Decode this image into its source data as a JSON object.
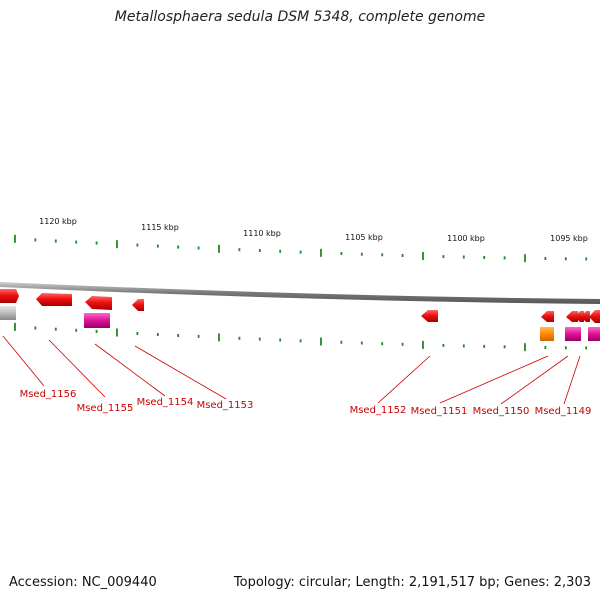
{
  "title": "Metallosphaera sedula DSM 5348, complete genome",
  "scale_labels": [
    "1120 kbp",
    "1115 kbp",
    "1110 kbp",
    "1105 kbp",
    "1100 kbp",
    "1095 kbp"
  ],
  "genes": [
    {
      "label": "Msed_1156"
    },
    {
      "label": "Msed_1155"
    },
    {
      "label": "Msed_1154"
    },
    {
      "label": "Msed_1153"
    },
    {
      "label": "Msed_1152"
    },
    {
      "label": "Msed_1151"
    },
    {
      "label": "Msed_1150"
    },
    {
      "label": "Msed_1149"
    }
  ],
  "footer": {
    "accession": "Accession: NC_009440",
    "summary": "Topology: circular; Length: 2,191,517 bp; Genes: 2,303"
  },
  "colors": {
    "gene": "#ee1111",
    "rna": "#dd1199",
    "misc": "#ff8800",
    "pseudo": "#bbbbbb",
    "tick": "#228822",
    "label": "#cc0000"
  }
}
